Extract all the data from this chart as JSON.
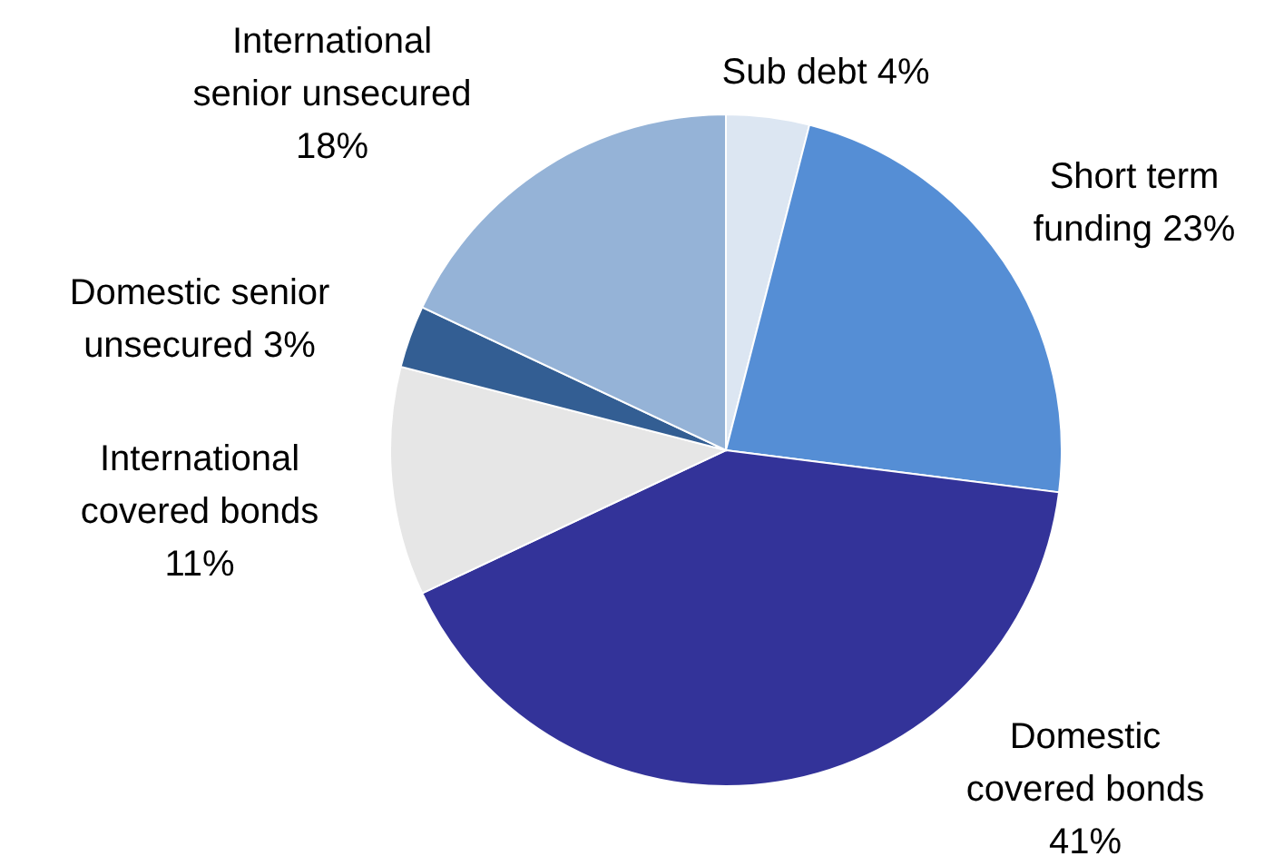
{
  "chart_data": {
    "type": "pie",
    "categories": [
      "Sub debt",
      "Short term\nfunding",
      "Domestic\ncovered bonds",
      "International\ncovered bonds",
      "Domestic senior\nunsecured",
      "International\nsenior unsecured"
    ],
    "values": [
      4,
      23,
      41,
      11,
      3,
      18
    ],
    "value_labels": [
      "4%",
      "23%",
      "41%",
      "11%",
      "3%",
      "18%"
    ],
    "colors": [
      "#dce6f2",
      "#558ed5",
      "#333399",
      "#e6e6e6",
      "#335e93",
      "#95b3d7"
    ]
  }
}
